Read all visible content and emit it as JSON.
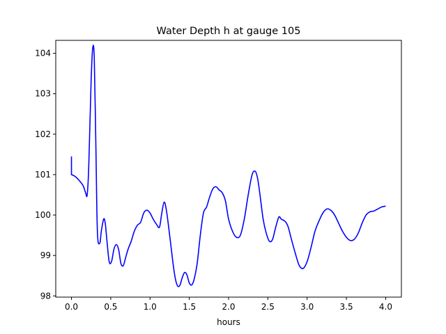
{
  "chart_data": {
    "type": "line",
    "title": "Water Depth h at gauge 105",
    "xlabel": "hours",
    "ylabel": "",
    "xlim": [
      -0.2,
      4.2
    ],
    "ylim": [
      97.97,
      104.32
    ],
    "xticks": [
      0.0,
      0.5,
      1.0,
      1.5,
      2.0,
      2.5,
      3.0,
      3.5,
      4.0
    ],
    "xtick_labels": [
      "0.0",
      "0.5",
      "1.0",
      "1.5",
      "2.0",
      "2.5",
      "3.0",
      "3.5",
      "4.0"
    ],
    "yticks": [
      98,
      99,
      100,
      101,
      102,
      103,
      104
    ],
    "ytick_labels": [
      "98",
      "99",
      "100",
      "101",
      "102",
      "103",
      "104"
    ],
    "grid": false,
    "series": [
      {
        "color": "#0000ff",
        "x": [
          0.0,
          0.0,
          0.05,
          0.1,
          0.15,
          0.18,
          0.2,
          0.22,
          0.25,
          0.27,
          0.29,
          0.31,
          0.33,
          0.36,
          0.38,
          0.41,
          0.43,
          0.45,
          0.48,
          0.51,
          0.54,
          0.57,
          0.6,
          0.63,
          0.66,
          0.69,
          0.72,
          0.76,
          0.8,
          0.84,
          0.88,
          0.92,
          0.96,
          1.0,
          1.04,
          1.08,
          1.12,
          1.15,
          1.18,
          1.21,
          1.25,
          1.29,
          1.32,
          1.35,
          1.38,
          1.41,
          1.44,
          1.47,
          1.5,
          1.53,
          1.56,
          1.6,
          1.64,
          1.68,
          1.72,
          1.76,
          1.8,
          1.84,
          1.88,
          1.92,
          1.96,
          2.0,
          2.05,
          2.1,
          2.15,
          2.2,
          2.25,
          2.3,
          2.34,
          2.37,
          2.4,
          2.44,
          2.48,
          2.52,
          2.56,
          2.6,
          2.64,
          2.67,
          2.7,
          2.73,
          2.76,
          2.8,
          2.85,
          2.9,
          2.95,
          3.0,
          3.05,
          3.1,
          3.15,
          3.2,
          3.25,
          3.3,
          3.35,
          3.4,
          3.45,
          3.5,
          3.55,
          3.6,
          3.65,
          3.7,
          3.75,
          3.8,
          3.85,
          3.9,
          3.95,
          4.0
        ],
        "y": [
          101.45,
          101.0,
          100.95,
          100.85,
          100.72,
          100.55,
          100.5,
          101.2,
          103.3,
          104.12,
          103.9,
          101.8,
          99.6,
          99.3,
          99.6,
          99.9,
          99.8,
          99.4,
          98.85,
          98.85,
          99.15,
          99.27,
          99.15,
          98.8,
          98.75,
          98.95,
          99.15,
          99.35,
          99.6,
          99.75,
          99.82,
          100.05,
          100.12,
          100.05,
          99.9,
          99.78,
          99.7,
          100.05,
          100.32,
          100.1,
          99.5,
          98.85,
          98.45,
          98.25,
          98.26,
          98.45,
          98.58,
          98.52,
          98.32,
          98.27,
          98.4,
          98.8,
          99.5,
          100.05,
          100.2,
          100.45,
          100.65,
          100.7,
          100.62,
          100.55,
          100.35,
          99.9,
          99.6,
          99.45,
          99.5,
          99.9,
          100.5,
          101.0,
          101.08,
          100.9,
          100.5,
          99.9,
          99.55,
          99.35,
          99.4,
          99.7,
          99.95,
          99.9,
          99.87,
          99.82,
          99.7,
          99.4,
          99.05,
          98.75,
          98.68,
          98.85,
          99.2,
          99.6,
          99.85,
          100.05,
          100.15,
          100.12,
          100.0,
          99.8,
          99.6,
          99.45,
          99.37,
          99.4,
          99.55,
          99.8,
          100.0,
          100.08,
          100.1,
          100.15,
          100.2,
          100.22
        ]
      }
    ]
  }
}
